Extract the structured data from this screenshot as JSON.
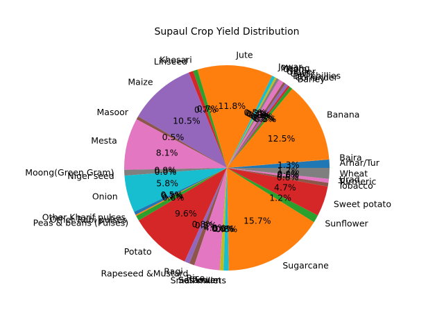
{
  "chart_data": {
    "type": "pie",
    "title": "Supaul Crop Yield Distribution",
    "start_angle_deg": 0,
    "direction": "counterclockwise",
    "slices": [
      {
        "label": "Arhar/Tur",
        "value": 1.3,
        "pct_label": "1.3%",
        "color": "#1f77b4"
      },
      {
        "label": "Bajra",
        "value": 0.1,
        "pct_label": "",
        "color": "#ff7f0e"
      },
      {
        "label": "Banana",
        "value": 12.5,
        "pct_label": "12.5%",
        "color": "#ff7f0e"
      },
      {
        "label": "Barley",
        "value": 0.5,
        "pct_label": "0.5%",
        "color": "#2ca02c"
      },
      {
        "label": "Coriander",
        "value": 0.3,
        "pct_label": "0.3%",
        "color": "#d62728"
      },
      {
        "label": "Dry chillies",
        "value": 0.5,
        "pct_label": "0.5%",
        "color": "#9467bd"
      },
      {
        "label": "Garlic",
        "value": 0.4,
        "pct_label": "0.4%",
        "color": "#8c564b"
      },
      {
        "label": "Ginger",
        "value": 0.8,
        "pct_label": "0.8%",
        "color": "#e377c2"
      },
      {
        "label": "Gram",
        "value": 0.4,
        "pct_label": "0.4%",
        "color": "#7f7f7f"
      },
      {
        "label": "Moong",
        "value": 0.3,
        "pct_label": "0.3%",
        "color": "#bcbd22"
      },
      {
        "label": "Jowar",
        "value": 0.5,
        "pct_label": "0.5%",
        "color": "#17becf"
      },
      {
        "label": "Jute",
        "value": 11.8,
        "pct_label": "11.8%",
        "color": "#ff7f0e"
      },
      {
        "label": "Khesari",
        "value": 0.7,
        "pct_label": "0.7%",
        "color": "#2ca02c"
      },
      {
        "label": "Linseed",
        "value": 0.7,
        "pct_label": "0.7%",
        "color": "#d62728"
      },
      {
        "label": "Maize",
        "value": 10.5,
        "pct_label": "10.5%",
        "color": "#9467bd"
      },
      {
        "label": "Masoor",
        "value": 0.5,
        "pct_label": "0.5%",
        "color": "#8c564b"
      },
      {
        "label": "Mesta",
        "value": 8.1,
        "pct_label": "8.1%",
        "color": "#e377c2"
      },
      {
        "label": "Moong(Green Gram)",
        "value": 0.9,
        "pct_label": "0.9%",
        "color": "#7f7f7f"
      },
      {
        "label": "Niger seed",
        "value": 0.0,
        "pct_label": "0.0%",
        "color": "#bcbd22"
      },
      {
        "label": "Onion",
        "value": 5.8,
        "pct_label": "5.8%",
        "color": "#17becf"
      },
      {
        "label": "Other Kharif pulses",
        "value": 0.5,
        "pct_label": "0.5%",
        "color": "#1f77b4"
      },
      {
        "label": "Other Rabi pulses",
        "value": 0.2,
        "pct_label": "0.2%",
        "color": "#ff7f0e"
      },
      {
        "label": "Peas & beans (Pulses)",
        "value": 0.8,
        "pct_label": "0.8%",
        "color": "#2ca02c"
      },
      {
        "label": "Potato",
        "value": 9.6,
        "pct_label": "9.6%",
        "color": "#d62728"
      },
      {
        "label": "Ragi",
        "value": 0.8,
        "pct_label": "0.8%",
        "color": "#9467bd"
      },
      {
        "label": "Rapeseed &Mustard",
        "value": 0.8,
        "pct_label": "0.8%",
        "color": "#8c564b"
      },
      {
        "label": "Rice",
        "value": 4.0,
        "pct_label": "4.0%",
        "color": "#e377c2"
      },
      {
        "label": "Safflower",
        "value": 0.0,
        "pct_label": "0.0%",
        "color": "#7f7f7f"
      },
      {
        "label": "Sesamum",
        "value": 0.6,
        "pct_label": "0.6%",
        "color": "#bcbd22"
      },
      {
        "label": "Small millets",
        "value": 0.8,
        "pct_label": "0.8%",
        "color": "#17becf"
      },
      {
        "label": "Sugarcane",
        "value": 15.7,
        "pct_label": "15.7%",
        "color": "#ff7f0e"
      },
      {
        "label": "Sunflower",
        "value": 1.2,
        "pct_label": "1.2%",
        "color": "#2ca02c"
      },
      {
        "label": "Sweet potato",
        "value": 4.7,
        "pct_label": "4.7%",
        "color": "#d62728"
      },
      {
        "label": "Tobacco",
        "value": 0.6,
        "pct_label": "0.6%",
        "color": "#8c564b"
      },
      {
        "label": "Turmeric",
        "value": 0.6,
        "pct_label": "0.6%",
        "color": "#e377c2"
      },
      {
        "label": "Urad",
        "value": 0.0,
        "pct_label": "0.0%",
        "color": "#7f7f7f"
      },
      {
        "label": "Wheat",
        "value": 1.7,
        "pct_label": "1.7%",
        "color": "#7f7f7f"
      }
    ]
  }
}
